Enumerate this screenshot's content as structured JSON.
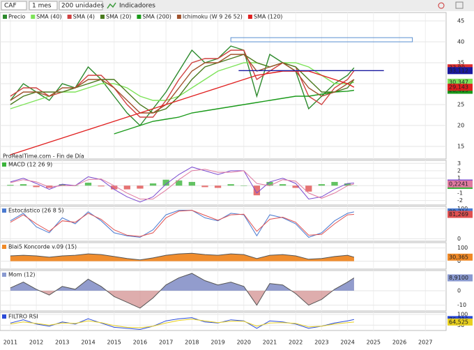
{
  "toolbar": {
    "symbol": "CAF",
    "period": "1 mes",
    "units": "200 unidades",
    "indicators": "Indicadores"
  },
  "chart_data": [
    {
      "type": "line",
      "title": "Precio",
      "watermark": "ProRealTime.com - Fin de Día",
      "x": [
        2011,
        2011.5,
        2012,
        2012.5,
        2013,
        2013.5,
        2014,
        2014.5,
        2015,
        2015.5,
        2016,
        2016.5,
        2017,
        2017.5,
        2018,
        2018.5,
        2019,
        2019.5,
        2020,
        2020.5,
        2021,
        2021.5,
        2022,
        2022.5,
        2023,
        2023.5,
        2024,
        2024.25
      ],
      "xlim": [
        2010.6,
        2027.8
      ],
      "ylim": [
        12,
        47
      ],
      "yticks": [
        15,
        20,
        25,
        30,
        35,
        40,
        45
      ],
      "series": [
        {
          "name": "Precio",
          "color": "#2d8a2d",
          "last_label": "33,80",
          "label_color": "#e03030",
          "values": [
            26,
            30,
            28,
            26,
            30,
            29,
            34,
            31,
            27,
            23,
            20,
            24,
            28,
            33,
            38,
            35,
            36,
            39,
            38,
            27,
            37,
            35,
            33,
            24,
            27,
            30,
            32,
            33.8
          ]
        },
        {
          "name": "SMA (40)",
          "color": "#7ee35a",
          "last_label": "30,347",
          "values": [
            24,
            25,
            26,
            27,
            28,
            28,
            29,
            30,
            30,
            29,
            27,
            26,
            26,
            27,
            29,
            31,
            33,
            34,
            35,
            35,
            34,
            35,
            35,
            34,
            32,
            30,
            30,
            30.347
          ]
        },
        {
          "name": "SMA (4)",
          "color": "#d04040",
          "values": [
            27,
            29,
            29,
            27,
            28,
            29,
            32,
            32,
            29,
            25,
            22,
            22,
            26,
            31,
            35,
            36,
            36,
            38,
            38,
            31,
            33,
            35,
            34,
            27,
            25,
            29,
            31,
            33.1
          ]
        },
        {
          "name": "SMA (20)",
          "color": "#4a7a1e",
          "values": [
            25,
            27,
            28,
            28,
            28,
            29,
            30,
            31,
            31,
            28,
            25,
            23,
            24,
            27,
            31,
            34,
            35,
            36,
            37,
            35,
            34,
            35,
            34,
            31,
            28,
            28,
            29,
            31
          ]
        },
        {
          "name": "SMA (200)",
          "color": "#1a9a1a",
          "last_label": "28,419",
          "values": [
            null,
            null,
            null,
            null,
            null,
            null,
            null,
            null,
            18,
            19,
            20,
            21,
            21.5,
            22,
            23,
            23.5,
            24,
            24.5,
            25,
            25.5,
            26,
            26.5,
            27,
            27,
            27.5,
            28,
            28.2,
            28.419
          ]
        },
        {
          "name": "Ichimoku (W 9 26 52)",
          "color": "#a0522d",
          "values": [
            26,
            28,
            28,
            27,
            29,
            29,
            31,
            31,
            29,
            26,
            23,
            23,
            25,
            29,
            33,
            35,
            35,
            37,
            37,
            33,
            34,
            35,
            33,
            29,
            27,
            28,
            30,
            31
          ]
        },
        {
          "name": "SMA (120)",
          "color": "#e02020",
          "last_label": "29,143",
          "values": [
            13,
            14,
            15,
            16,
            17,
            18,
            19,
            20,
            21,
            22,
            23,
            24,
            25,
            26,
            27,
            28,
            29,
            30,
            31,
            32,
            32.5,
            33,
            33,
            33,
            32,
            31,
            30,
            29.143
          ]
        }
      ],
      "hlines": [
        {
          "value": 33.112,
          "label": "33,112",
          "color": "#1a1aa0",
          "x": [
            2019.8,
            2025.4
          ]
        }
      ],
      "box": {
        "x": [
          2019.5,
          2026.5
        ],
        "y": [
          40,
          41
        ],
        "color": "#5a8fd0"
      }
    },
    {
      "type": "line",
      "title": "MACD (12 26 9)",
      "x": [
        2011,
        2011.5,
        2012,
        2012.5,
        2013,
        2013.5,
        2014,
        2014.5,
        2015,
        2015.5,
        2016,
        2016.5,
        2017,
        2017.5,
        2018,
        2018.5,
        2019,
        2019.5,
        2020,
        2020.5,
        2021,
        2021.5,
        2022,
        2022.5,
        2023,
        2023.5,
        2024,
        2024.25
      ],
      "xlim": [
        2010.6,
        2027.8
      ],
      "ylim": [
        -2.6,
        3.4
      ],
      "yticks": [
        -2,
        -1,
        0,
        1,
        2,
        3
      ],
      "series": [
        {
          "style": "bars",
          "color": "#3cb43c",
          "neg_color": "#e05050",
          "last_label": "0,0292",
          "values": [
            0.1,
            0.2,
            -0.2,
            -0.3,
            0.2,
            0,
            0.4,
            -0.1,
            -0.5,
            -0.5,
            -0.4,
            0.3,
            0.8,
            0.7,
            0.5,
            -0.2,
            -0.3,
            0.2,
            0,
            -1.3,
            0.5,
            0.2,
            -0.3,
            -0.8,
            0.2,
            0.5,
            0.3,
            0.0292
          ]
        },
        {
          "color": "#7a4ad0",
          "last_label": "0,3537",
          "values": [
            0.5,
            1,
            0.3,
            -0.5,
            0.2,
            0,
            1.2,
            0.8,
            -0.5,
            -1.5,
            -2.2,
            -1.5,
            0.2,
            1.5,
            2.5,
            2,
            1.5,
            2,
            2,
            -1,
            0.5,
            1,
            0.3,
            -1.8,
            -1.5,
            -0.5,
            0.3,
            0.3537
          ]
        },
        {
          "color": "#e07aa0",
          "last_label": "0,2241",
          "values": [
            0.4,
            0.8,
            0.5,
            -0.2,
            0,
            0,
            0.8,
            0.9,
            0,
            -1,
            -1.8,
            -1.8,
            -0.6,
            0.8,
            2,
            2.2,
            1.8,
            1.8,
            2,
            0.3,
            0,
            0.8,
            0.6,
            -1,
            -1.7,
            -1,
            0,
            0.2241
          ]
        }
      ]
    },
    {
      "type": "line",
      "title": "Estocástico (26 8 5)",
      "x": [
        2011,
        2011.5,
        2012,
        2012.5,
        2013,
        2013.5,
        2014,
        2014.5,
        2015,
        2015.5,
        2016,
        2016.5,
        2017,
        2017.5,
        2018,
        2018.5,
        2019,
        2019.5,
        2020,
        2020.5,
        2021,
        2021.5,
        2022,
        2022.5,
        2023,
        2023.5,
        2024,
        2024.25
      ],
      "xlim": [
        2010.6,
        2027.8
      ],
      "ylim": [
        -8,
        108
      ],
      "yticks": [
        0,
        100
      ],
      "series": [
        {
          "color": "#4a7ad0",
          "last_label": "89,716",
          "values": [
            60,
            85,
            40,
            20,
            70,
            50,
            90,
            60,
            20,
            10,
            5,
            30,
            80,
            95,
            95,
            70,
            60,
            85,
            80,
            10,
            80,
            70,
            50,
            5,
            20,
            60,
            85,
            89.716
          ]
        },
        {
          "color": "#e05050",
          "last_label": "81,269",
          "values": [
            55,
            80,
            50,
            25,
            60,
            55,
            85,
            65,
            30,
            12,
            8,
            20,
            70,
            92,
            95,
            78,
            62,
            80,
            82,
            25,
            65,
            72,
            55,
            12,
            15,
            50,
            80,
            81.269
          ]
        }
      ]
    },
    {
      "type": "line",
      "title": "Blai5 Koncorde v.09 (15)",
      "x": [
        2011,
        2011.5,
        2012,
        2012.5,
        2013,
        2013.5,
        2014,
        2014.5,
        2015,
        2015.5,
        2016,
        2016.5,
        2017,
        2017.5,
        2018,
        2018.5,
        2019,
        2019.5,
        2020,
        2020.5,
        2021,
        2021.5,
        2022,
        2022.5,
        2023,
        2023.5,
        2024,
        2024.25
      ],
      "xlim": [
        2010.6,
        2027.8
      ],
      "ylim": [
        -60,
        140
      ],
      "yticks": [
        0,
        100
      ],
      "series": [
        {
          "style": "area",
          "color": "#f08a28",
          "last_label": "30,365",
          "values": [
            40,
            45,
            40,
            30,
            40,
            45,
            55,
            50,
            35,
            20,
            10,
            25,
            45,
            55,
            60,
            50,
            45,
            55,
            50,
            20,
            45,
            50,
            40,
            15,
            20,
            35,
            45,
            30.365
          ]
        }
      ]
    },
    {
      "type": "line",
      "title": "Mom (12)",
      "x": [
        2011,
        2011.5,
        2012,
        2012.5,
        2013,
        2013.5,
        2014,
        2014.5,
        2015,
        2015.5,
        2016,
        2016.5,
        2017,
        2017.5,
        2018,
        2018.5,
        2019,
        2019.5,
        2020,
        2020.5,
        2021,
        2021.5,
        2022,
        2022.5,
        2023,
        2023.5,
        2024,
        2024.25
      ],
      "xlim": [
        2010.6,
        2027.8
      ],
      "ylim": [
        -14,
        14
      ],
      "yticks": [
        -10,
        0
      ],
      "series": [
        {
          "style": "area",
          "color": "#8a9ad0",
          "neg_color": "#d08a8a",
          "last_label": "8,9100",
          "values": [
            2,
            6,
            1,
            -3,
            3,
            1,
            8,
            3,
            -4,
            -8,
            -12,
            -5,
            4,
            9,
            12,
            7,
            4,
            6,
            3,
            -10,
            5,
            4,
            -2,
            -10,
            -6,
            1,
            6,
            8.91
          ]
        }
      ]
    },
    {
      "type": "line",
      "title": "FILTRO RSI",
      "x": [
        2011,
        2011.5,
        2012,
        2012.5,
        2013,
        2013.5,
        2014,
        2014.5,
        2015,
        2015.5,
        2016,
        2016.5,
        2017,
        2017.5,
        2018,
        2018.5,
        2019,
        2019.5,
        2020,
        2020.5,
        2021,
        2021.5,
        2022,
        2022.5,
        2023,
        2023.5,
        2024,
        2024.25
      ],
      "xlim": [
        2010.6,
        2027.8
      ],
      "ylim": [
        25,
        110
      ],
      "yticks": [
        50,
        100
      ],
      "xticks": [
        2011,
        2012,
        2013,
        2014,
        2015,
        2016,
        2017,
        2018,
        2019,
        2020,
        2021,
        2022,
        2023,
        2024,
        2025,
        2026,
        2027
      ],
      "series": [
        {
          "color": "#2a4ad8",
          "last_label": "76,216",
          "values": [
            60,
            75,
            55,
            45,
            65,
            55,
            80,
            60,
            40,
            35,
            30,
            45,
            70,
            80,
            85,
            65,
            60,
            75,
            70,
            35,
            70,
            65,
            55,
            35,
            45,
            60,
            70,
            76.216
          ]
        },
        {
          "color": "#e8d020",
          "last_label": "64,525",
          "values": [
            55,
            65,
            58,
            50,
            60,
            58,
            70,
            62,
            48,
            40,
            38,
            45,
            60,
            72,
            78,
            70,
            62,
            68,
            68,
            45,
            60,
            62,
            58,
            42,
            45,
            55,
            62,
            64.525
          ]
        }
      ]
    }
  ]
}
